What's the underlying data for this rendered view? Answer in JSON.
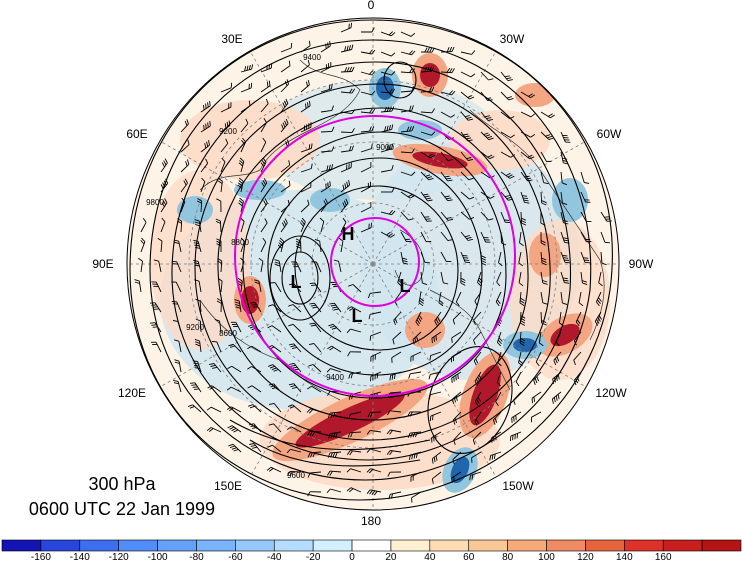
{
  "map": {
    "projection": "north polar stereographic",
    "longitude_labels": [
      {
        "text": "0"
      },
      {
        "text": "30W"
      },
      {
        "text": "60W"
      },
      {
        "text": "90W"
      },
      {
        "text": "120W"
      },
      {
        "text": "150W"
      },
      {
        "text": "180"
      },
      {
        "text": "150E"
      },
      {
        "text": "120E"
      },
      {
        "text": "90E"
      },
      {
        "text": "60E"
      },
      {
        "text": "30E"
      }
    ],
    "contour_labels": [
      "9400",
      "9200",
      "9000",
      "8800",
      "8600",
      "9200",
      "9400",
      "9600",
      "9800"
    ],
    "pressure_centers": [
      "H",
      "L",
      "L",
      "L"
    ],
    "highlight_circle_color": "#e000e0",
    "contour_color": "#000000",
    "field_colors": {
      "positive_strong": "#b2182b",
      "positive_mid": "#f4a582",
      "positive_weak": "#fddbc7",
      "negative_strong": "#2166ac",
      "negative_mid": "#92c5de",
      "negative_weak": "#d1e5f0"
    }
  },
  "caption": {
    "level": "300 hPa",
    "time": "0600 UTC 22 Jan 1999"
  },
  "colorbar": {
    "colors": [
      "#1414b4",
      "#2846dc",
      "#3c6ef0",
      "#508cfa",
      "#64a0ff",
      "#78b4ff",
      "#96c8ff",
      "#b4dcff",
      "#d2f0ff",
      "#ffffff",
      "#fff0d2",
      "#ffdcb4",
      "#fac896",
      "#f5aa78",
      "#f08c64",
      "#e6643c",
      "#dc3228",
      "#c81e1e",
      "#b41414"
    ],
    "tick_labels": [
      "-160",
      "-140",
      "-120",
      "-100",
      "-80",
      "-60",
      "-40",
      "-20",
      "0",
      "20",
      "40",
      "60",
      "80",
      "100",
      "120",
      "140",
      "160"
    ]
  }
}
